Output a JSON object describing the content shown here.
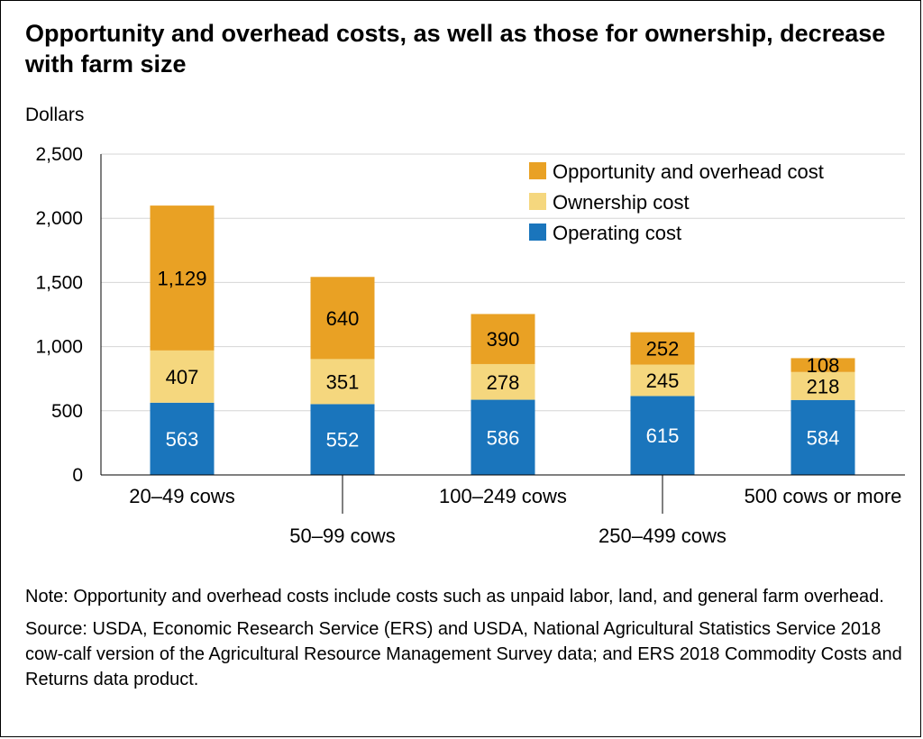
{
  "title": "Opportunity and overhead costs, as well as those for ownership, decrease with farm size",
  "note": "Note: Opportunity and overhead costs include costs such as unpaid labor, land, and general farm overhead.",
  "source": "Source: USDA, Economic Research Service (ERS) and USDA, National Agricultural Statistics Service 2018 cow-calf version of the Agricultural Resource Management Survey data; and ERS 2018 Commodity Costs and Returns data product.",
  "chart_data": {
    "type": "bar",
    "stacked": true,
    "ylabel": "Dollars",
    "ylim": [
      0,
      2500
    ],
    "yticks": [
      0,
      500,
      1000,
      1500,
      2000,
      2500
    ],
    "ytick_labels": [
      "0",
      "500",
      "1,000",
      "1,500",
      "2,000",
      "2,500"
    ],
    "grid": true,
    "legend_position": "top-right",
    "categories": [
      "20–49 cows",
      "50–99 cows",
      "100–249 cows",
      "250–499 cows",
      "500 cows or more"
    ],
    "series": [
      {
        "name": "Operating cost",
        "color": "#1a75bc",
        "label_color": "#ffffff",
        "values": [
          563,
          552,
          586,
          615,
          584
        ]
      },
      {
        "name": "Ownership cost",
        "color": "#f5d77e",
        "label_color": "#000000",
        "values": [
          407,
          351,
          278,
          245,
          218
        ]
      },
      {
        "name": "Opportunity and overhead cost",
        "color": "#e9a124",
        "label_color": "#000000",
        "values": [
          1129,
          640,
          390,
          252,
          108
        ]
      }
    ],
    "data_labels": [
      [
        "563",
        "552",
        "586",
        "615",
        "584"
      ],
      [
        "407",
        "351",
        "278",
        "245",
        "218"
      ],
      [
        "1,129",
        "640",
        "390",
        "252",
        "108"
      ]
    ],
    "legend_order": [
      "Opportunity and overhead cost",
      "Ownership cost",
      "Operating cost"
    ]
  }
}
